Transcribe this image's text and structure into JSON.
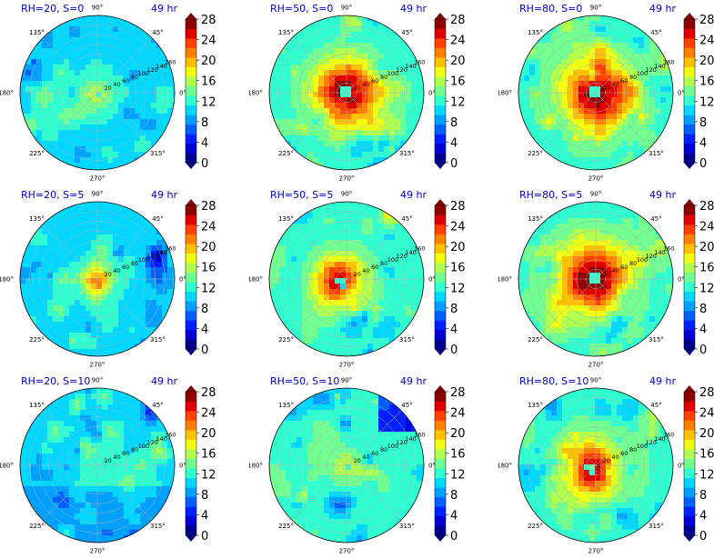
{
  "figure": {
    "time_label": "49 hr",
    "angle_labels": [
      "90°",
      "45°",
      "0°",
      "315°",
      "270°",
      "225°",
      "180°",
      "135°"
    ],
    "radial_labels": [
      "20",
      "40",
      "60",
      "80",
      "100",
      "120",
      "140",
      "160"
    ],
    "colorbar": {
      "ticks": [
        "0",
        "4",
        "8",
        "12",
        "16",
        "20",
        "24",
        "28"
      ],
      "levels": [
        0,
        2,
        4,
        6,
        8,
        10,
        12,
        14,
        16,
        18,
        20,
        22,
        24,
        26,
        28
      ],
      "colors": [
        "#00008f",
        "#0000d4",
        "#0020ff",
        "#0060ff",
        "#00a0ff",
        "#00d8ff",
        "#30ffd0",
        "#70ff90",
        "#b0ff50",
        "#f0ff10",
        "#ffc000",
        "#ff8000",
        "#ff4000",
        "#e00000",
        "#8f0000"
      ],
      "colormap": "jet"
    }
  },
  "chart_data": [
    {
      "type": "heatmap",
      "subtype": "polar-contour",
      "title": "RH=20, S=0",
      "time": "49 hr",
      "rh": 20,
      "s": 0,
      "theta_range": [
        0,
        360
      ],
      "r_range": [
        0,
        160
      ],
      "clim": [
        0,
        28
      ],
      "core": "weak",
      "dominant_value_approx": 14
    },
    {
      "type": "heatmap",
      "subtype": "polar-contour",
      "title": "RH=50, S=0",
      "time": "49 hr",
      "rh": 50,
      "s": 0,
      "theta_range": [
        0,
        360
      ],
      "r_range": [
        0,
        160
      ],
      "clim": [
        0,
        28
      ],
      "core": "intense",
      "dominant_value_approx": 24
    },
    {
      "type": "heatmap",
      "subtype": "polar-contour",
      "title": "RH=80, S=0",
      "time": "49 hr",
      "rh": 80,
      "s": 0,
      "theta_range": [
        0,
        360
      ],
      "r_range": [
        0,
        160
      ],
      "clim": [
        0,
        28
      ],
      "core": "intense",
      "dominant_value_approx": 28
    },
    {
      "type": "heatmap",
      "subtype": "polar-contour",
      "title": "RH=20, S=5",
      "time": "49 hr",
      "rh": 20,
      "s": 5,
      "theta_range": [
        0,
        360
      ],
      "r_range": [
        0,
        160
      ],
      "clim": [
        0,
        28
      ],
      "core": "small",
      "dominant_value_approx": 16
    },
    {
      "type": "heatmap",
      "subtype": "polar-contour",
      "title": "RH=50, S=5",
      "time": "49 hr",
      "rh": 50,
      "s": 5,
      "theta_range": [
        0,
        360
      ],
      "r_range": [
        0,
        160
      ],
      "clim": [
        0,
        28
      ],
      "core": "asymmetric",
      "dominant_value_approx": 22
    },
    {
      "type": "heatmap",
      "subtype": "polar-contour",
      "title": "RH=80, S=5",
      "time": "49 hr",
      "rh": 80,
      "s": 5,
      "theta_range": [
        0,
        360
      ],
      "r_range": [
        0,
        160
      ],
      "clim": [
        0,
        28
      ],
      "core": "intense",
      "dominant_value_approx": 28
    },
    {
      "type": "heatmap",
      "subtype": "polar-contour",
      "title": "RH=20, S=10",
      "time": "49 hr",
      "rh": 20,
      "s": 10,
      "theta_range": [
        0,
        360
      ],
      "r_range": [
        0,
        160
      ],
      "clim": [
        0,
        28
      ],
      "core": "none",
      "dominant_value_approx": 12
    },
    {
      "type": "heatmap",
      "subtype": "polar-contour",
      "title": "RH=50, S=10",
      "time": "49 hr",
      "rh": 50,
      "s": 10,
      "theta_range": [
        0,
        360
      ],
      "r_range": [
        0,
        160
      ],
      "clim": [
        0,
        28
      ],
      "core": "weak",
      "dominant_value_approx": 15
    },
    {
      "type": "heatmap",
      "subtype": "polar-contour",
      "title": "RH=80, S=10",
      "time": "49 hr",
      "rh": 80,
      "s": 10,
      "theta_range": [
        0,
        360
      ],
      "r_range": [
        0,
        160
      ],
      "clim": [
        0,
        28
      ],
      "core": "asymmetric",
      "dominant_value_approx": 18
    }
  ]
}
